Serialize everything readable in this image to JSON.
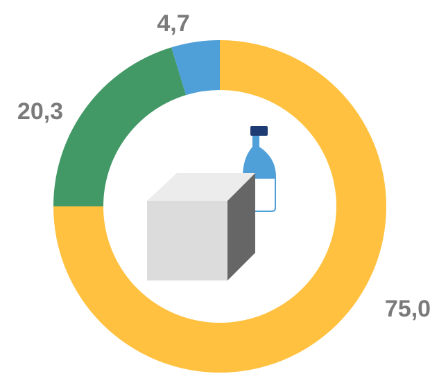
{
  "chart_data": {
    "type": "donut",
    "values": [
      75.0,
      20.3,
      4.7
    ],
    "value_labels": [
      "75,0",
      "20,3",
      "4,7"
    ],
    "colors": [
      "#ffc13f",
      "#439966",
      "#4f9fd9"
    ]
  }
}
